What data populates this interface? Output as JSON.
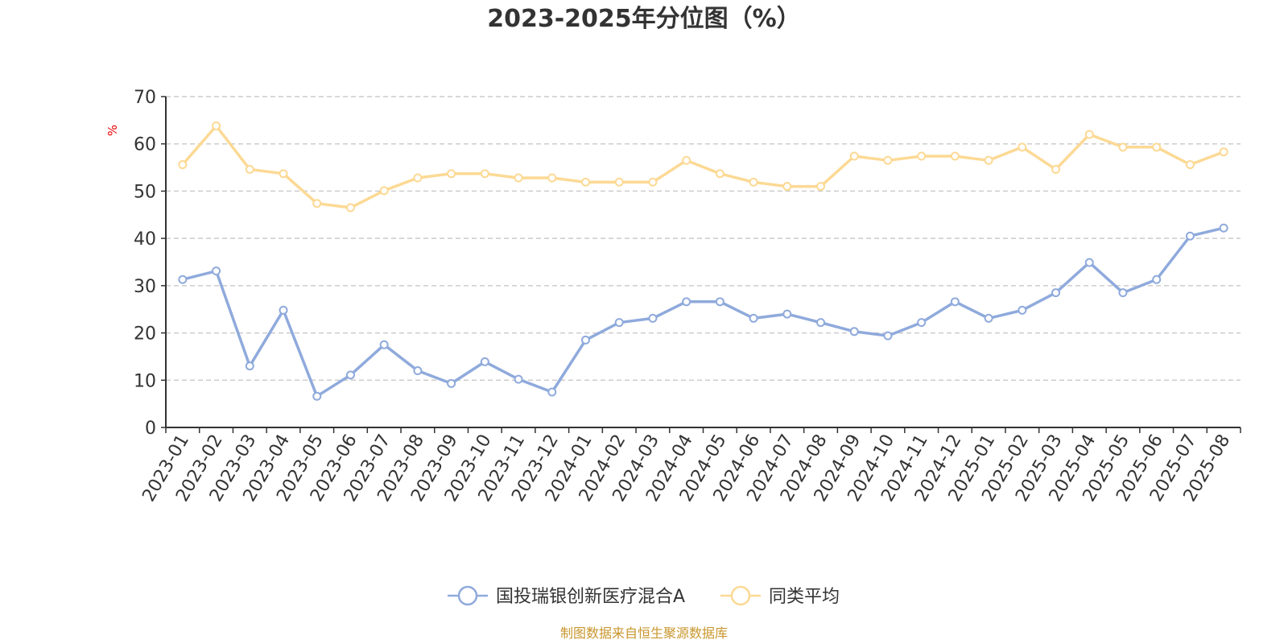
{
  "chart_data": {
    "type": "line",
    "title": "2023-2025年分位图（%）",
    "ylabel": "%",
    "ylim": [
      0,
      70
    ],
    "yticks": [
      "0",
      "10",
      "20",
      "30",
      "40",
      "50",
      "60",
      "70"
    ],
    "grid": true,
    "legend_position": "bottom",
    "categories": [
      "2023-01",
      "2023-02",
      "2023-03",
      "2023-04",
      "2023-05",
      "2023-06",
      "2023-07",
      "2023-08",
      "2023-09",
      "2023-10",
      "2023-11",
      "2023-12",
      "2024-01",
      "2024-02",
      "2024-03",
      "2024-04",
      "2024-05",
      "2024-06",
      "2024-07",
      "2024-08",
      "2024-09",
      "2024-10",
      "2024-11",
      "2024-12",
      "2025-01",
      "2025-02",
      "2025-03",
      "2025-04",
      "2025-05",
      "2025-06",
      "2025-07",
      "2025-08"
    ],
    "series": [
      {
        "name": "国投瑞银创新医疗混合A",
        "color": "#8faadc",
        "values": [
          31.3,
          33.1,
          13.0,
          24.8,
          6.6,
          11.1,
          17.5,
          12.0,
          9.3,
          13.9,
          10.2,
          7.5,
          18.5,
          22.2,
          23.1,
          26.6,
          26.6,
          23.1,
          24.0,
          22.2,
          20.3,
          19.4,
          22.2,
          26.6,
          23.1,
          24.8,
          28.5,
          34.9,
          28.5,
          31.3,
          40.5,
          42.2
        ]
      },
      {
        "name": "同类平均",
        "color": "#fcd994",
        "values": [
          55.6,
          63.8,
          54.6,
          53.7,
          47.4,
          46.5,
          50.1,
          52.8,
          53.7,
          53.7,
          52.8,
          52.8,
          51.9,
          51.9,
          51.9,
          56.5,
          53.7,
          51.9,
          51.0,
          51.0,
          57.4,
          56.5,
          57.4,
          57.4,
          56.5,
          59.3,
          54.6,
          62.0,
          59.3,
          59.3,
          55.6,
          58.3
        ]
      }
    ]
  },
  "source": "制图数据来自恒生聚源数据库"
}
